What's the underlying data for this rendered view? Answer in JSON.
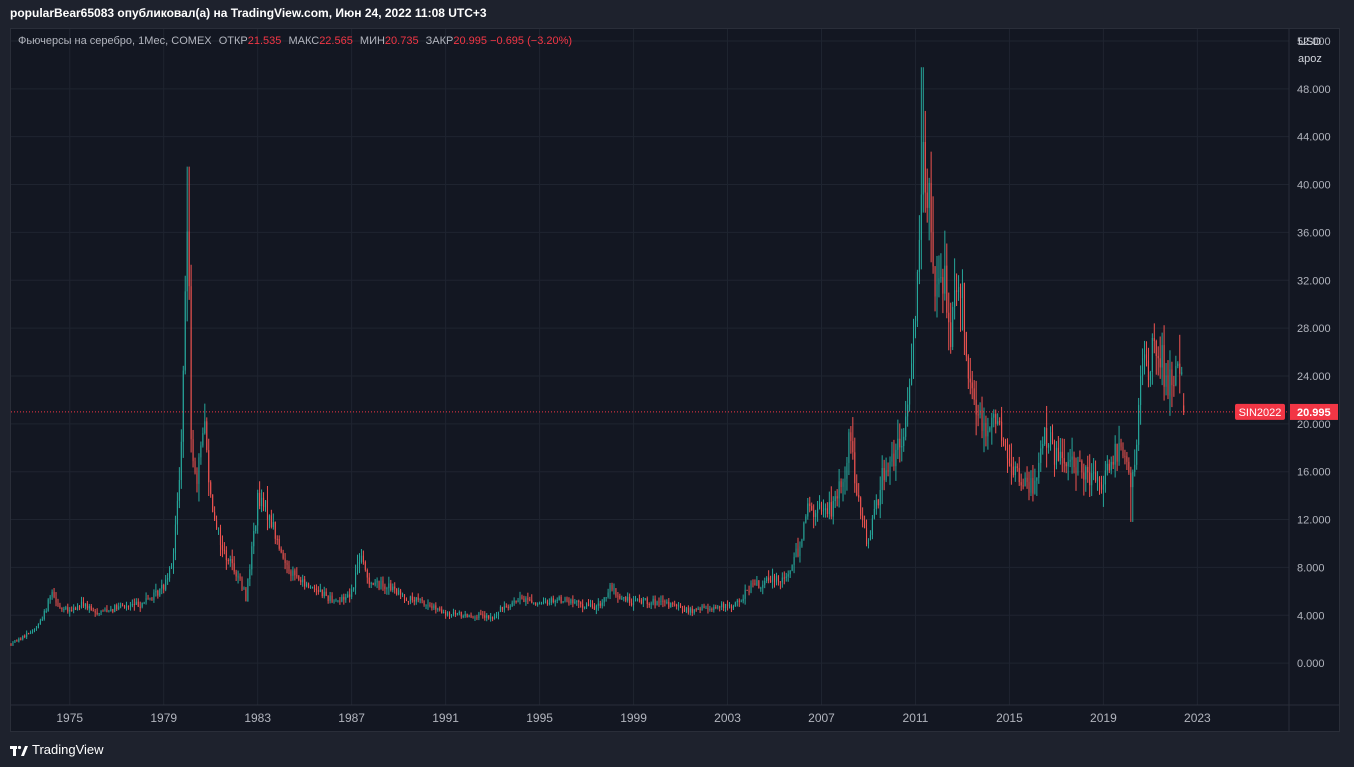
{
  "header": {
    "publish_text": "popularBear65083 опубликовал(а) на TradingView.com, Июн 24, 2022 11:08 UTC+3"
  },
  "legend": {
    "symbol": "Фьючерсы на серебро, 1Мес, COMEX",
    "open_label": "ОТКР",
    "open_value": "21.535",
    "high_label": "МАКС",
    "high_value": "22.565",
    "low_label": "МИН",
    "low_value": "20.735",
    "close_label": "ЗАКР",
    "close_value": "20.995",
    "change": "−0.695 (−3.20%)"
  },
  "axis_info": {
    "currency": "USD",
    "unit": "apoz"
  },
  "price_tag": {
    "symbol": "SIN2022",
    "value": "20.995"
  },
  "footer": {
    "brand": "TradingView"
  },
  "colors": {
    "up": "#26a69a",
    "down": "#ef5350",
    "background": "#131722",
    "grid": "#1f2430",
    "price_line": "#f23645"
  },
  "chart_data": {
    "type": "candlestick",
    "title": "Фьючерсы на серебро, 1Мес, COMEX",
    "xlabel": "",
    "ylabel": "",
    "x_ticks": [
      "1975",
      "1979",
      "1983",
      "1987",
      "1991",
      "1995",
      "1999",
      "2003",
      "2007",
      "2011",
      "2015",
      "2019",
      "2023"
    ],
    "y_ticks": [
      "0.000",
      "4.000",
      "8.000",
      "12.000",
      "16.000",
      "20.000",
      "24.000",
      "28.000",
      "32.000",
      "36.000",
      "40.000",
      "44.000",
      "48.000",
      "52.000"
    ],
    "ylim": [
      -3.5,
      53
    ],
    "xlim": [
      1972.5,
      2026.9
    ],
    "grid": true,
    "last_close": 20.995,
    "series": [
      {
        "t": 1972.5,
        "v": 1.6
      },
      {
        "t": 1973.0,
        "v": 2.2
      },
      {
        "t": 1973.6,
        "v": 3.0
      },
      {
        "t": 1974.0,
        "v": 4.5
      },
      {
        "t": 1974.2,
        "v": 6.2
      },
      {
        "t": 1974.6,
        "v": 4.6
      },
      {
        "t": 1975.0,
        "v": 4.3
      },
      {
        "t": 1975.6,
        "v": 5.0
      },
      {
        "t": 1976.0,
        "v": 4.2
      },
      {
        "t": 1976.6,
        "v": 4.5
      },
      {
        "t": 1977.0,
        "v": 4.6
      },
      {
        "t": 1977.6,
        "v": 4.8
      },
      {
        "t": 1978.0,
        "v": 5.0
      },
      {
        "t": 1978.6,
        "v": 5.6
      },
      {
        "t": 1979.0,
        "v": 6.5
      },
      {
        "t": 1979.4,
        "v": 9.0
      },
      {
        "t": 1979.7,
        "v": 16.0
      },
      {
        "t": 1979.9,
        "v": 28.0
      },
      {
        "t": 1980.05,
        "v": 40.0
      },
      {
        "t": 1980.15,
        "v": 20.0
      },
      {
        "t": 1980.4,
        "v": 14.0
      },
      {
        "t": 1980.7,
        "v": 21.0
      },
      {
        "t": 1981.0,
        "v": 14.0
      },
      {
        "t": 1981.5,
        "v": 9.5
      },
      {
        "t": 1982.0,
        "v": 8.0
      },
      {
        "t": 1982.5,
        "v": 5.5
      },
      {
        "t": 1983.0,
        "v": 13.5
      },
      {
        "t": 1983.5,
        "v": 12.5
      },
      {
        "t": 1984.0,
        "v": 9.0
      },
      {
        "t": 1984.5,
        "v": 7.5
      },
      {
        "t": 1985.0,
        "v": 6.5
      },
      {
        "t": 1985.5,
        "v": 6.3
      },
      {
        "t": 1986.0,
        "v": 5.5
      },
      {
        "t": 1986.5,
        "v": 5.2
      },
      {
        "t": 1987.0,
        "v": 6.0
      },
      {
        "t": 1987.35,
        "v": 9.0
      },
      {
        "t": 1987.7,
        "v": 7.0
      },
      {
        "t": 1988.0,
        "v": 6.6
      },
      {
        "t": 1988.5,
        "v": 6.5
      },
      {
        "t": 1989.0,
        "v": 5.8
      },
      {
        "t": 1989.5,
        "v": 5.3
      },
      {
        "t": 1990.0,
        "v": 5.1
      },
      {
        "t": 1990.5,
        "v": 4.6
      },
      {
        "t": 1991.0,
        "v": 4.0
      },
      {
        "t": 1991.5,
        "v": 4.1
      },
      {
        "t": 1992.0,
        "v": 4.0
      },
      {
        "t": 1992.5,
        "v": 3.9
      },
      {
        "t": 1993.0,
        "v": 3.7
      },
      {
        "t": 1993.5,
        "v": 4.8
      },
      {
        "t": 1994.0,
        "v": 5.2
      },
      {
        "t": 1994.5,
        "v": 5.4
      },
      {
        "t": 1995.0,
        "v": 4.8
      },
      {
        "t": 1995.5,
        "v": 5.3
      },
      {
        "t": 1996.0,
        "v": 5.3
      },
      {
        "t": 1996.5,
        "v": 5.0
      },
      {
        "t": 1997.0,
        "v": 4.8
      },
      {
        "t": 1997.5,
        "v": 4.7
      },
      {
        "t": 1998.0,
        "v": 6.2
      },
      {
        "t": 1998.5,
        "v": 5.4
      },
      {
        "t": 1999.0,
        "v": 5.1
      },
      {
        "t": 1999.5,
        "v": 5.3
      },
      {
        "t": 2000.0,
        "v": 5.0
      },
      {
        "t": 2000.5,
        "v": 4.9
      },
      {
        "t": 2001.0,
        "v": 4.6
      },
      {
        "t": 2001.5,
        "v": 4.3
      },
      {
        "t": 2002.0,
        "v": 4.6
      },
      {
        "t": 2002.5,
        "v": 4.7
      },
      {
        "t": 2003.0,
        "v": 4.7
      },
      {
        "t": 2003.5,
        "v": 5.1
      },
      {
        "t": 2004.0,
        "v": 6.5
      },
      {
        "t": 2004.5,
        "v": 6.6
      },
      {
        "t": 2005.0,
        "v": 7.1
      },
      {
        "t": 2005.5,
        "v": 7.2
      },
      {
        "t": 2006.0,
        "v": 9.5
      },
      {
        "t": 2006.4,
        "v": 13.0
      },
      {
        "t": 2006.8,
        "v": 12.5
      },
      {
        "t": 2007.0,
        "v": 13.0
      },
      {
        "t": 2007.5,
        "v": 13.0
      },
      {
        "t": 2008.0,
        "v": 16.0
      },
      {
        "t": 2008.2,
        "v": 19.5
      },
      {
        "t": 2008.6,
        "v": 13.0
      },
      {
        "t": 2008.9,
        "v": 10.0
      },
      {
        "t": 2009.3,
        "v": 13.0
      },
      {
        "t": 2009.7,
        "v": 16.5
      },
      {
        "t": 2010.0,
        "v": 17.0
      },
      {
        "t": 2010.5,
        "v": 18.5
      },
      {
        "t": 2010.8,
        "v": 24.0
      },
      {
        "t": 2011.0,
        "v": 30.0
      },
      {
        "t": 2011.3,
        "v": 43.0
      },
      {
        "t": 2011.6,
        "v": 38.0
      },
      {
        "t": 2011.9,
        "v": 30.0
      },
      {
        "t": 2012.2,
        "v": 33.0
      },
      {
        "t": 2012.5,
        "v": 28.0
      },
      {
        "t": 2012.8,
        "v": 33.0
      },
      {
        "t": 2013.0,
        "v": 31.0
      },
      {
        "t": 2013.3,
        "v": 23.5
      },
      {
        "t": 2013.6,
        "v": 21.0
      },
      {
        "t": 2014.0,
        "v": 20.0
      },
      {
        "t": 2014.5,
        "v": 20.5
      },
      {
        "t": 2015.0,
        "v": 16.5
      },
      {
        "t": 2015.5,
        "v": 15.5
      },
      {
        "t": 2016.0,
        "v": 14.5
      },
      {
        "t": 2016.5,
        "v": 19.5
      },
      {
        "t": 2017.0,
        "v": 17.0
      },
      {
        "t": 2017.5,
        "v": 16.6
      },
      {
        "t": 2018.0,
        "v": 16.5
      },
      {
        "t": 2018.5,
        "v": 15.2
      },
      {
        "t": 2019.0,
        "v": 15.3
      },
      {
        "t": 2019.5,
        "v": 17.5
      },
      {
        "t": 2020.0,
        "v": 17.8
      },
      {
        "t": 2020.2,
        "v": 14.5
      },
      {
        "t": 2020.45,
        "v": 18.0
      },
      {
        "t": 2020.6,
        "v": 26.0
      },
      {
        "t": 2020.9,
        "v": 24.0
      },
      {
        "t": 2021.1,
        "v": 27.0
      },
      {
        "t": 2021.4,
        "v": 26.0
      },
      {
        "t": 2021.7,
        "v": 23.5
      },
      {
        "t": 2022.0,
        "v": 23.0
      },
      {
        "t": 2022.2,
        "v": 25.5
      },
      {
        "t": 2022.45,
        "v": 21.0
      }
    ]
  }
}
